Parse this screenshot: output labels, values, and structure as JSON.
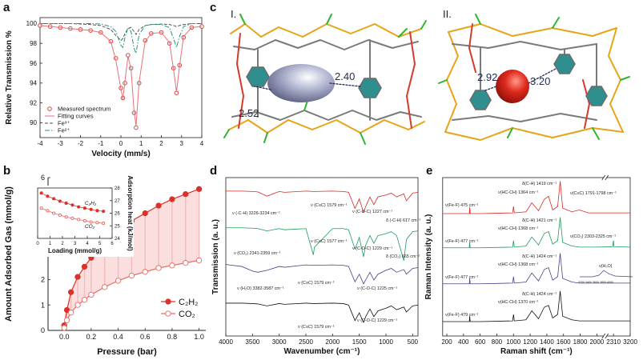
{
  "panel_labels": [
    "a",
    "b",
    "c",
    "d",
    "e"
  ],
  "structures": {
    "labels": [
      "I.",
      "II."
    ],
    "distances": [
      "2.52",
      "2.40",
      "2.92",
      "3.20"
    ]
  },
  "chart_data": [
    {
      "type": "line",
      "xlabel": "Velocity (mm/s)",
      "ylabel": "Relative Transmission %",
      "x": [
        -4,
        -3.5,
        -3,
        -2.5,
        -2,
        -1.5,
        -1,
        -0.5,
        -0.25,
        0,
        0.1,
        0.2,
        0.35,
        0.5,
        0.65,
        0.75,
        0.9,
        1.2,
        1.5,
        2,
        2.4,
        2.6,
        2.75,
        2.9,
        3.1,
        3.5,
        4
      ],
      "xlim": [
        -4,
        4
      ],
      "ylim": [
        88.5,
        100.6
      ],
      "xticks": [
        -4,
        -3,
        -2,
        -1,
        0,
        1,
        2,
        3,
        4
      ],
      "yticks": [
        90,
        92,
        94,
        96,
        98,
        100
      ],
      "legend": "lower left",
      "series": [
        {
          "name": "Measured spectrum",
          "color": "#c8372d",
          "line": "none",
          "marker": "open-circle",
          "values": [
            99.8,
            99.7,
            99.6,
            99.5,
            99.4,
            99.3,
            99.1,
            98.2,
            96.5,
            93.5,
            92.5,
            94,
            96.8,
            95.5,
            91,
            89.5,
            94,
            98.3,
            99,
            99.1,
            98,
            95.5,
            93,
            95.8,
            98.6,
            99.6,
            99.7
          ]
        },
        {
          "name": "Fitting curves",
          "color": "#e8707a",
          "line": "solid",
          "marker": "none",
          "values": [
            99.8,
            99.7,
            99.6,
            99.5,
            99.4,
            99.3,
            99.1,
            98.2,
            96.3,
            93.4,
            92.4,
            94.2,
            96.7,
            95.4,
            91.2,
            89.7,
            94.1,
            98.2,
            99,
            99.1,
            98.1,
            95.4,
            93.1,
            95.7,
            98.7,
            99.6,
            99.7
          ]
        },
        {
          "name": "Fe³⁺",
          "color": "#555555",
          "line": "dashed",
          "marker": "none",
          "values": [
            100,
            100,
            100,
            100,
            99.95,
            99.9,
            99.8,
            99.4,
            98.8,
            98.3,
            98.5,
            99,
            99.5,
            99.6,
            99.2,
            98.9,
            99.4,
            99.8,
            99.9,
            99.95,
            99.9,
            99.8,
            99.7,
            99.8,
            99.9,
            100,
            100
          ]
        },
        {
          "name": "Fe²⁺",
          "color": "#1f9a78",
          "line": "dashdot",
          "marker": "none",
          "values": [
            100,
            100,
            100,
            100,
            100,
            100,
            99.95,
            99.7,
            99.2,
            97.8,
            97.6,
            98.6,
            99.6,
            99.2,
            97.5,
            97,
            98.9,
            99.8,
            99.9,
            99.9,
            99.6,
            98.5,
            97.6,
            98.7,
            99.7,
            100,
            100
          ]
        }
      ]
    },
    {
      "type": "line",
      "xlabel": "Pressure (bar)",
      "ylabel": "Amount Adsorbed Gas (mmol/g)",
      "x": [
        0,
        0.02,
        0.05,
        0.1,
        0.15,
        0.2,
        0.3,
        0.4,
        0.5,
        0.6,
        0.7,
        0.8,
        0.9,
        1.0
      ],
      "xlim": [
        -0.12,
        1.05
      ],
      "ylim": [
        0,
        6
      ],
      "xticks": [
        {
          "value": 0,
          "label": "0.0"
        },
        {
          "value": 0.2,
          "label": "0.2"
        },
        {
          "value": 0.4,
          "label": "0.4"
        },
        {
          "value": 0.6,
          "label": "0.6"
        },
        {
          "value": 0.8,
          "label": "0.8"
        },
        {
          "value": 1,
          "label": "1.0"
        }
      ],
      "yticks": [
        0,
        1,
        2,
        3,
        4,
        5,
        6
      ],
      "legend": "lower right",
      "fill_between": true,
      "fill_color": "#f6b9b9",
      "series": [
        {
          "name": "C₂H₂",
          "color": "#d8322a",
          "line": "solid",
          "marker": "filled-circle",
          "values": [
            0.2,
            0.8,
            1.5,
            2.1,
            2.5,
            2.85,
            3.4,
            3.9,
            4.3,
            4.6,
            4.9,
            5.15,
            5.35,
            5.55
          ]
        },
        {
          "name": "CO₂",
          "color": "#e86a64",
          "line": "solid",
          "marker": "open-circle",
          "values": [
            0.1,
            0.4,
            0.7,
            1.0,
            1.2,
            1.4,
            1.7,
            1.95,
            2.15,
            2.3,
            2.45,
            2.55,
            2.65,
            2.75
          ]
        }
      ]
    },
    {
      "type": "line",
      "xlabel": "Loading (mmol/g)",
      "ylabel": "Adsorption heat (kJ/mol)",
      "x": [
        0.3,
        0.8,
        1.3,
        1.8,
        2.3,
        2.8,
        3.3,
        3.8,
        4.3,
        4.8,
        5.3
      ],
      "xlim": [
        0,
        6
      ],
      "ylim": [
        24,
        28
      ],
      "xticks": [
        0,
        1,
        2,
        3,
        4,
        5,
        6
      ],
      "yticks": [
        24,
        25,
        26,
        27,
        28
      ],
      "legend": "inline",
      "series": [
        {
          "name": "C₂H₂",
          "color": "#d8322a",
          "line": "solid",
          "marker": "filled-circle",
          "values": [
            27.6,
            27.35,
            27.15,
            26.95,
            26.8,
            26.65,
            26.5,
            26.4,
            26.3,
            26.2,
            26.15
          ]
        },
        {
          "name": "CO₂",
          "color": "#e86a64",
          "line": "solid",
          "marker": "open-circle",
          "values": [
            26.4,
            26.2,
            26.0,
            25.85,
            25.7,
            25.6,
            25.5,
            25.4,
            25.3,
            25.25,
            25.2
          ]
        }
      ]
    },
    {
      "type": "line",
      "xlabel": "Wavenumber (cm⁻¹)",
      "ylabel": "Transmission (a. u.)",
      "x": [
        4000,
        3700,
        3500,
        3400,
        3230,
        3000,
        2900,
        2500,
        2360,
        2340,
        2000,
        1800,
        1700,
        1580,
        1500,
        1420,
        1380,
        1300,
        1227,
        1150,
        1000,
        900,
        800,
        665,
        617,
        500,
        400
      ],
      "xlim": [
        4000,
        400
      ],
      "ylim": [
        0,
        4.1
      ],
      "xticks": [
        4000,
        3500,
        3000,
        2500,
        2000,
        1500,
        1000,
        500
      ],
      "series": [
        {
          "color": "#d42a22",
          "line": "solid",
          "marker": "none",
          "values": [
            3.75,
            3.75,
            3.74,
            3.73,
            3.62,
            3.74,
            3.72,
            3.75,
            3.74,
            3.74,
            3.75,
            3.74,
            3.72,
            3.3,
            3.55,
            3.2,
            3.35,
            3.6,
            3.4,
            3.6,
            3.65,
            3.7,
            3.6,
            3.68,
            3.5,
            3.7,
            3.72
          ]
        },
        {
          "color": "#1e9a5c",
          "line": "solid",
          "marker": "none",
          "values": [
            2.8,
            2.8,
            2.79,
            2.78,
            2.72,
            2.78,
            2.75,
            2.78,
            2.1,
            2.3,
            2.78,
            2.78,
            2.75,
            2.25,
            2.55,
            2.05,
            2.35,
            2.6,
            2.4,
            2.6,
            2.65,
            2.7,
            2.6,
            1.95,
            2.5,
            2.7,
            2.72
          ]
        },
        {
          "color": "#4b3f86",
          "line": "solid",
          "marker": "none",
          "values": [
            1.85,
            1.8,
            1.68,
            1.65,
            1.7,
            1.8,
            1.78,
            1.84,
            1.83,
            1.83,
            1.84,
            1.83,
            1.8,
            1.4,
            1.6,
            1.35,
            1.45,
            1.65,
            1.45,
            1.6,
            1.7,
            1.75,
            1.65,
            1.72,
            1.6,
            1.75,
            1.77
          ]
        },
        {
          "color": "#111111",
          "line": "solid",
          "marker": "none",
          "values": [
            0.85,
            0.85,
            0.84,
            0.83,
            0.78,
            0.84,
            0.82,
            0.85,
            0.84,
            0.84,
            0.85,
            0.84,
            0.8,
            0.4,
            0.6,
            0.35,
            0.5,
            0.7,
            0.5,
            0.65,
            0.72,
            0.78,
            0.68,
            0.75,
            0.62,
            0.78,
            0.8
          ]
        }
      ],
      "annotations": [
        "ν (-C-H) 3226-3234 cm⁻¹",
        "ν (C≡C) 1579 cm⁻¹",
        "ν (C-O-C) 1227 cm⁻¹",
        "δ (-C-H) 617 cm⁻¹",
        "ν (CO₂) 2341-2359 cm⁻¹",
        "ν (C≡C) 1577 cm⁻¹",
        "ν (C-O-C) 1229 cm⁻¹",
        "δ (CO₂) 665 cm⁻¹",
        "ν (H₂O) 3382-3587 cm⁻¹",
        "ν (C≡C) 1579 cm⁻¹",
        "ν (C-O-C) 1225 cm⁻¹",
        "ν (C≡C) 1579 cm⁻¹",
        "ν (C-O-C) 1229 cm⁻¹"
      ]
    },
    {
      "type": "line",
      "xlabel": "Raman shift (cm⁻¹)",
      "ylabel": "Raman Intensity (a. u.)",
      "x": [
        150,
        300,
        470,
        475,
        480,
        600,
        800,
        990,
        1000,
        1010,
        1150,
        1220,
        1300,
        1370,
        1420,
        1470,
        1530,
        1560,
        1590,
        1700,
        1790,
        1900,
        2000,
        2290,
        2310,
        2330,
        3200
      ],
      "xlim": [
        150,
        3200
      ],
      "axis_break": true,
      "ylim": [
        0,
        4.4
      ],
      "xticks": [
        200,
        400,
        600,
        800,
        1000,
        1200,
        1400,
        1600,
        1800,
        2000,
        2310,
        3200
      ],
      "series": [
        {
          "color": "#d42a22",
          "line": "solid",
          "marker": "none",
          "values": [
            3.4,
            3.4,
            3.4,
            3.58,
            3.4,
            3.4,
            3.41,
            3.42,
            3.6,
            3.42,
            3.45,
            3.7,
            3.48,
            3.8,
            3.88,
            3.5,
            3.6,
            4.3,
            3.55,
            3.45,
            3.5,
            3.42,
            3.42,
            3.42,
            3.42,
            3.42,
            3.42
          ]
        },
        {
          "color": "#1e9a5c",
          "line": "solid",
          "marker": "none",
          "values": [
            2.45,
            2.45,
            2.45,
            2.6,
            2.45,
            2.45,
            2.46,
            2.47,
            2.65,
            2.47,
            2.5,
            2.75,
            2.53,
            2.85,
            2.9,
            2.55,
            2.65,
            3.3,
            2.6,
            2.5,
            2.47,
            2.47,
            2.47,
            2.48,
            2.65,
            2.48,
            2.47
          ]
        },
        {
          "color": "#4b3f86",
          "line": "solid",
          "marker": "none",
          "values": [
            1.45,
            1.45,
            1.45,
            1.6,
            1.45,
            1.45,
            1.46,
            1.47,
            1.65,
            1.47,
            1.5,
            1.75,
            1.53,
            1.85,
            1.9,
            1.55,
            1.65,
            2.3,
            1.6,
            1.5,
            1.47,
            1.47,
            1.47,
            1.47,
            1.47,
            1.47,
            1.47
          ]
        },
        {
          "color": "#111111",
          "line": "solid",
          "marker": "none",
          "values": [
            0.4,
            0.4,
            0.4,
            0.55,
            0.4,
            0.4,
            0.41,
            0.42,
            0.6,
            0.42,
            0.45,
            0.7,
            0.48,
            0.8,
            0.85,
            0.5,
            0.6,
            1.25,
            0.55,
            0.45,
            0.42,
            0.42,
            0.42,
            0.42,
            0.42,
            0.42,
            0.42
          ]
        }
      ],
      "annotations": [
        "ν(Fe-F) 475 cm⁻¹",
        "δ(C-H) 1419 cm⁻¹",
        "ν(HC-CH) 1364 cm⁻¹",
        "ν(C≡C) 1791-1798 cm⁻¹",
        "ν(Fe-F) 477 cm⁻¹",
        "δ(C-H) 1421 cm⁻¹",
        "ν(HC-CH) 1368 cm⁻¹",
        "ν(CO₂) 2303-2325 cm⁻¹",
        "ν(Fe-F) 477 cm⁻¹",
        "δ(C-H) 1424 cm⁻¹",
        "ν(HC-CH) 1368 cm⁻¹",
        "ν(H₂O)",
        "3200 3400 3600 3800 4000",
        "ν(Fe-F) 479 cm⁻¹",
        "δ(C-H) 1424 cm⁻¹",
        "ν(HC-CH) 1370 cm⁻¹"
      ]
    }
  ]
}
